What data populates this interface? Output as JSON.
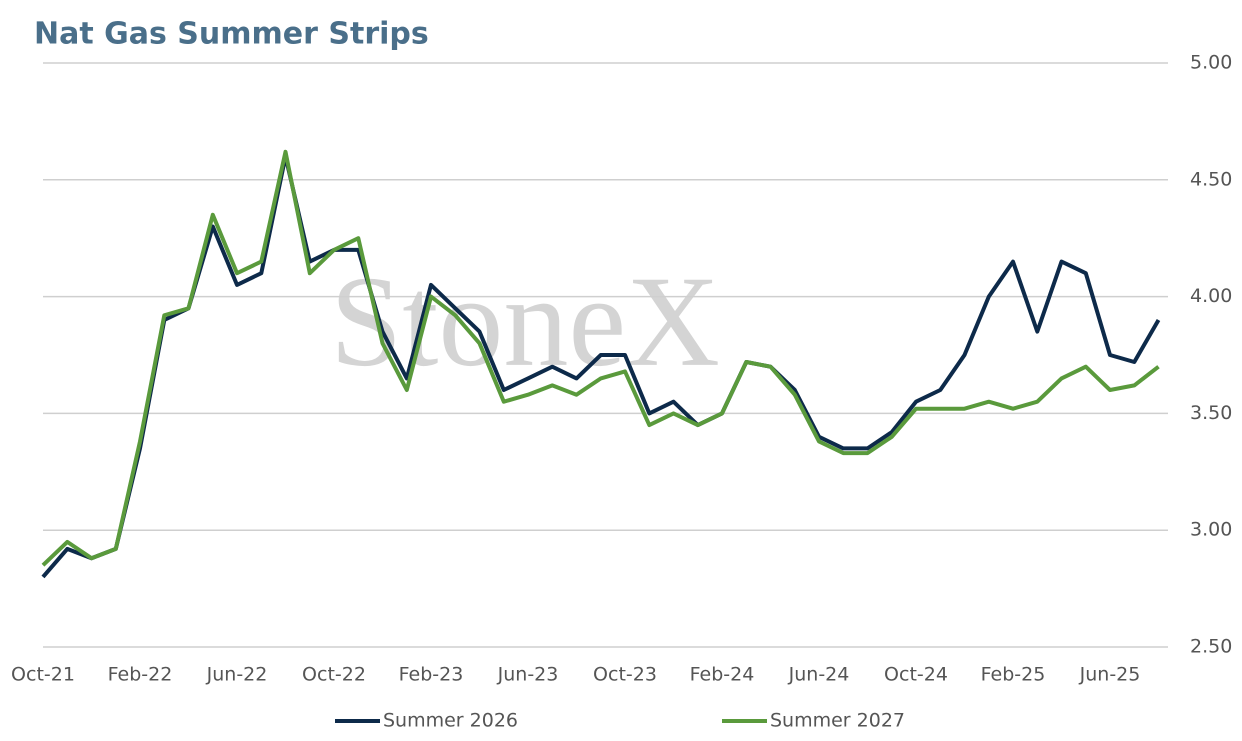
{
  "chart_data": {
    "type": "line",
    "title": "Nat Gas Summer Strips",
    "watermark": "StoneX",
    "categories": [
      "Oct-21",
      null,
      null,
      null,
      "Feb-22",
      null,
      null,
      null,
      "Jun-22",
      null,
      null,
      null,
      "Oct-22",
      null,
      null,
      null,
      "Feb-23",
      null,
      null,
      null,
      "Jun-23",
      null,
      null,
      null,
      "Oct-23",
      null,
      null,
      null,
      "Feb-24",
      null,
      null,
      null,
      "Jun-24",
      null,
      null,
      null,
      "Oct-24",
      null,
      null,
      null,
      "Feb-25",
      null,
      null,
      null,
      "Jun-25",
      null,
      null
    ],
    "series": [
      {
        "name": "Summer 2026",
        "color": "#0d2a4a",
        "values": [
          2.8,
          2.92,
          2.88,
          2.92,
          3.35,
          3.9,
          3.95,
          4.3,
          4.05,
          4.1,
          4.6,
          4.15,
          4.2,
          4.2,
          3.85,
          3.65,
          4.05,
          3.95,
          3.85,
          3.6,
          3.65,
          3.7,
          3.65,
          3.75,
          3.75,
          3.5,
          3.55,
          3.45,
          3.5,
          3.72,
          3.7,
          3.6,
          3.4,
          3.35,
          3.35,
          3.42,
          3.55,
          3.6,
          3.75,
          4.0,
          4.15,
          3.85,
          4.15,
          4.1,
          3.75,
          3.72,
          3.9
        ]
      },
      {
        "name": "Summer 2027",
        "color": "#5a9a3c",
        "values": [
          2.85,
          2.95,
          2.88,
          2.92,
          3.38,
          3.92,
          3.95,
          4.35,
          4.1,
          4.15,
          4.62,
          4.1,
          4.2,
          4.25,
          3.8,
          3.6,
          4.0,
          3.92,
          3.8,
          3.55,
          3.58,
          3.62,
          3.58,
          3.65,
          3.68,
          3.45,
          3.5,
          3.45,
          3.5,
          3.72,
          3.7,
          3.58,
          3.38,
          3.33,
          3.33,
          3.4,
          3.52,
          3.52,
          3.52,
          3.55,
          3.52,
          3.55,
          3.65,
          3.7,
          3.6,
          3.62,
          3.7
        ]
      }
    ],
    "ylim": [
      2.5,
      5.0
    ],
    "yticks": [
      {
        "value": 2.5,
        "label": "2.50"
      },
      {
        "value": 3,
        "label": "3.00"
      },
      {
        "value": 3.5,
        "label": "3.50"
      },
      {
        "value": 4,
        "label": "4.00"
      },
      {
        "value": 4.5,
        "label": "4.50"
      },
      {
        "value": 5,
        "label": "5.00"
      }
    ],
    "grid": true,
    "legend": "bottom"
  }
}
